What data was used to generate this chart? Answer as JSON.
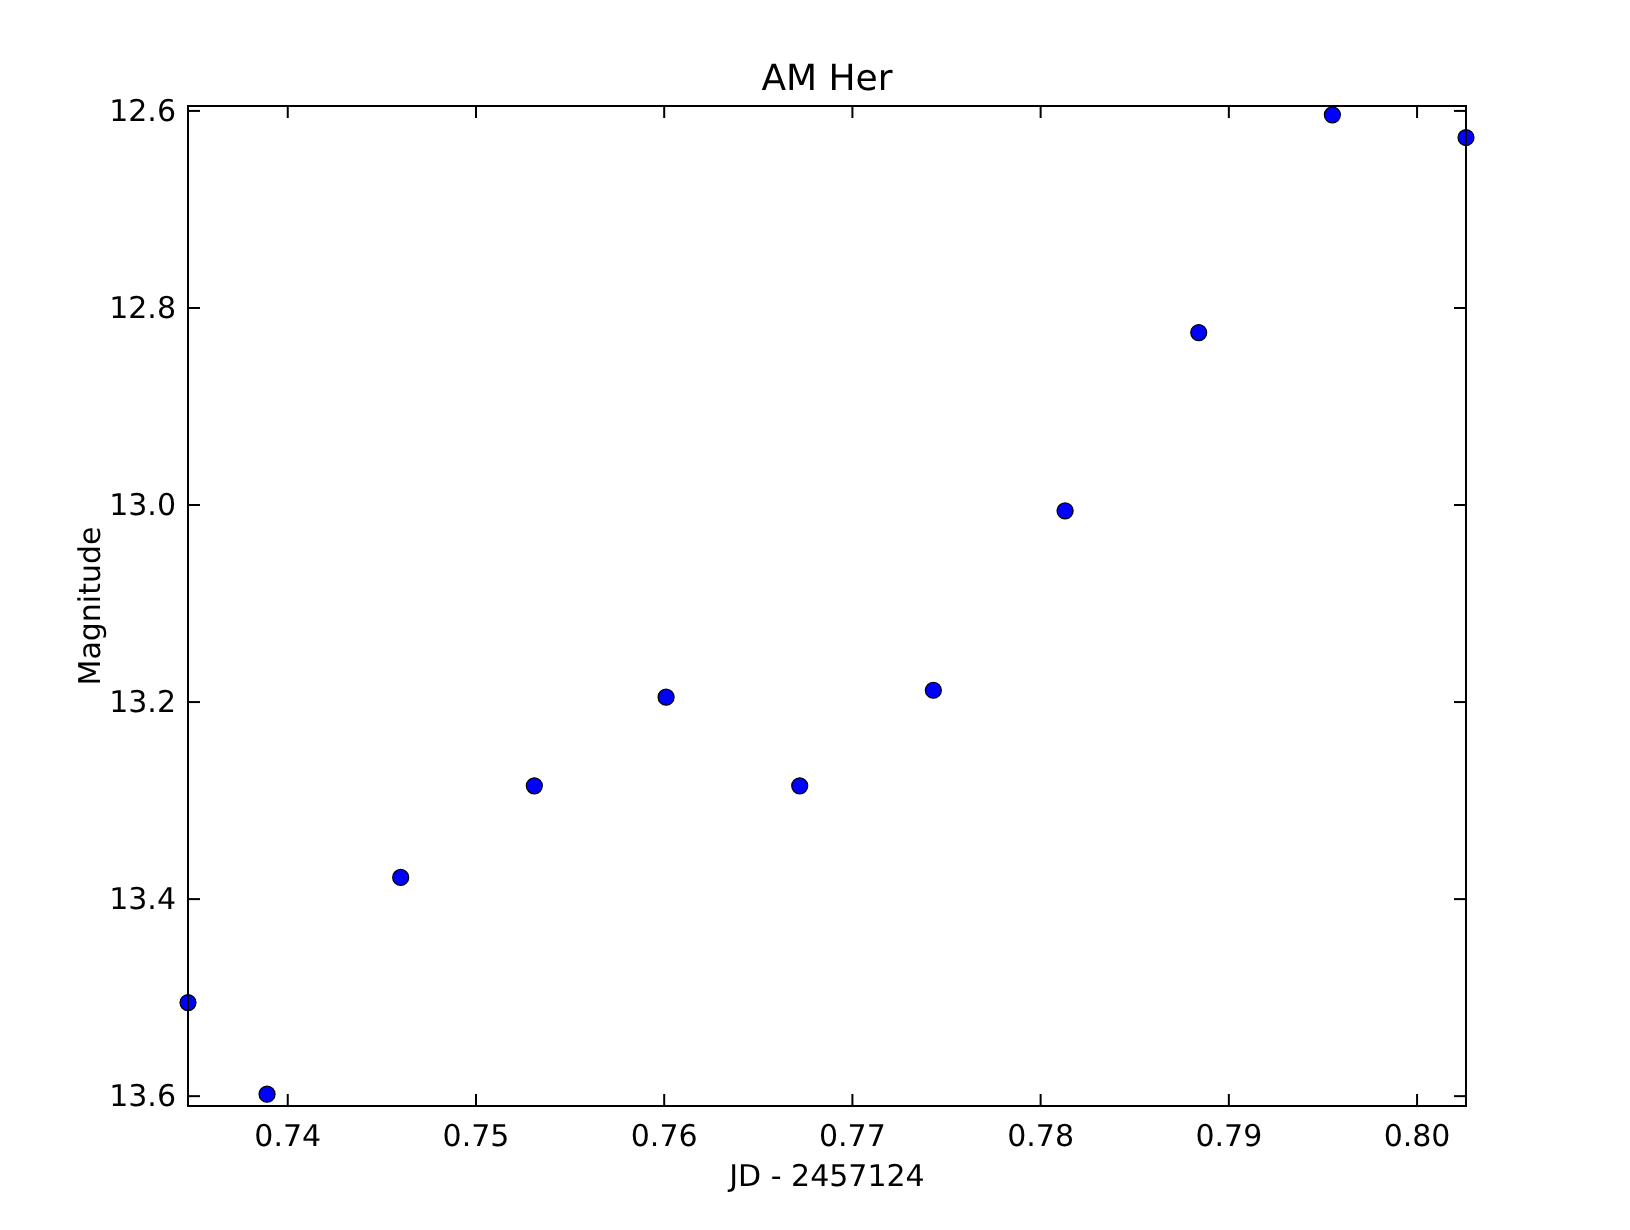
{
  "chart_data": {
    "type": "scatter",
    "title": "AM Her",
    "xlabel": "JD - 2457124",
    "ylabel": "Magnitude",
    "x": [
      0.7347,
      0.7389,
      0.746,
      0.7531,
      0.7601,
      0.7672,
      0.7743,
      0.7813,
      0.7884,
      0.7955,
      0.8026
    ],
    "series": [
      {
        "color": "#0000ff",
        "values": [
          13.505,
          13.598,
          13.378,
          13.285,
          13.195,
          13.285,
          13.188,
          13.006,
          12.825,
          12.604,
          12.627
        ]
      }
    ],
    "marker": "circle",
    "grid": false,
    "xlim": [
      0.7347,
      0.8026
    ],
    "ylim": [
      13.61,
      12.595
    ],
    "xticks": [
      0.74,
      0.75,
      0.76,
      0.77,
      0.78,
      0.79,
      {
        "value": 0.8,
        "label": "0.80"
      }
    ],
    "yticks": [
      12.6,
      12.8,
      {
        "value": 13.0,
        "label": "13.0"
      },
      13.2,
      13.4,
      13.6
    ]
  }
}
